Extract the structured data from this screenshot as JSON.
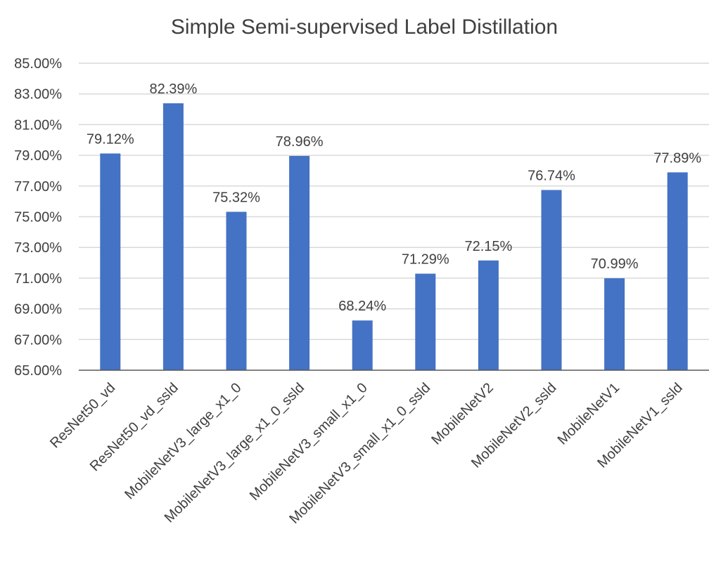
{
  "chart_data": {
    "type": "bar",
    "title": "Simple Semi-supervised Label Distillation",
    "xlabel": "",
    "ylabel": "",
    "categories": [
      "ResNet50_vd",
      "ResNet50_vd_ssld",
      "MobileNetV3_large_x1_0",
      "MobileNetV3_large_x1_0_ssld",
      "MobileNetV3_small_x1_0",
      "MobileNetV3_small_x1_0_ssld",
      "MobileNetV2",
      "MobileNetV2_ssld",
      "MobileNetV1",
      "MobileNetV1_ssld"
    ],
    "values": [
      79.12,
      82.39,
      75.32,
      78.96,
      68.24,
      71.29,
      72.15,
      76.74,
      70.99,
      77.89
    ],
    "value_labels": [
      "79.12%",
      "82.39%",
      "75.32%",
      "78.96%",
      "68.24%",
      "71.29%",
      "72.15%",
      "76.74%",
      "70.99%",
      "77.89%"
    ],
    "ylim": [
      65,
      85
    ],
    "yticks": [
      65,
      67,
      69,
      71,
      73,
      75,
      77,
      79,
      81,
      83,
      85
    ],
    "ytick_labels": [
      "65.00%",
      "67.00%",
      "69.00%",
      "71.00%",
      "73.00%",
      "75.00%",
      "77.00%",
      "79.00%",
      "81.00%",
      "83.00%",
      "85.00%"
    ],
    "grid": true,
    "legend": "none",
    "bar_color": "#4472C4",
    "grid_color": "#D9D9D9",
    "axis_color": "#595959"
  }
}
